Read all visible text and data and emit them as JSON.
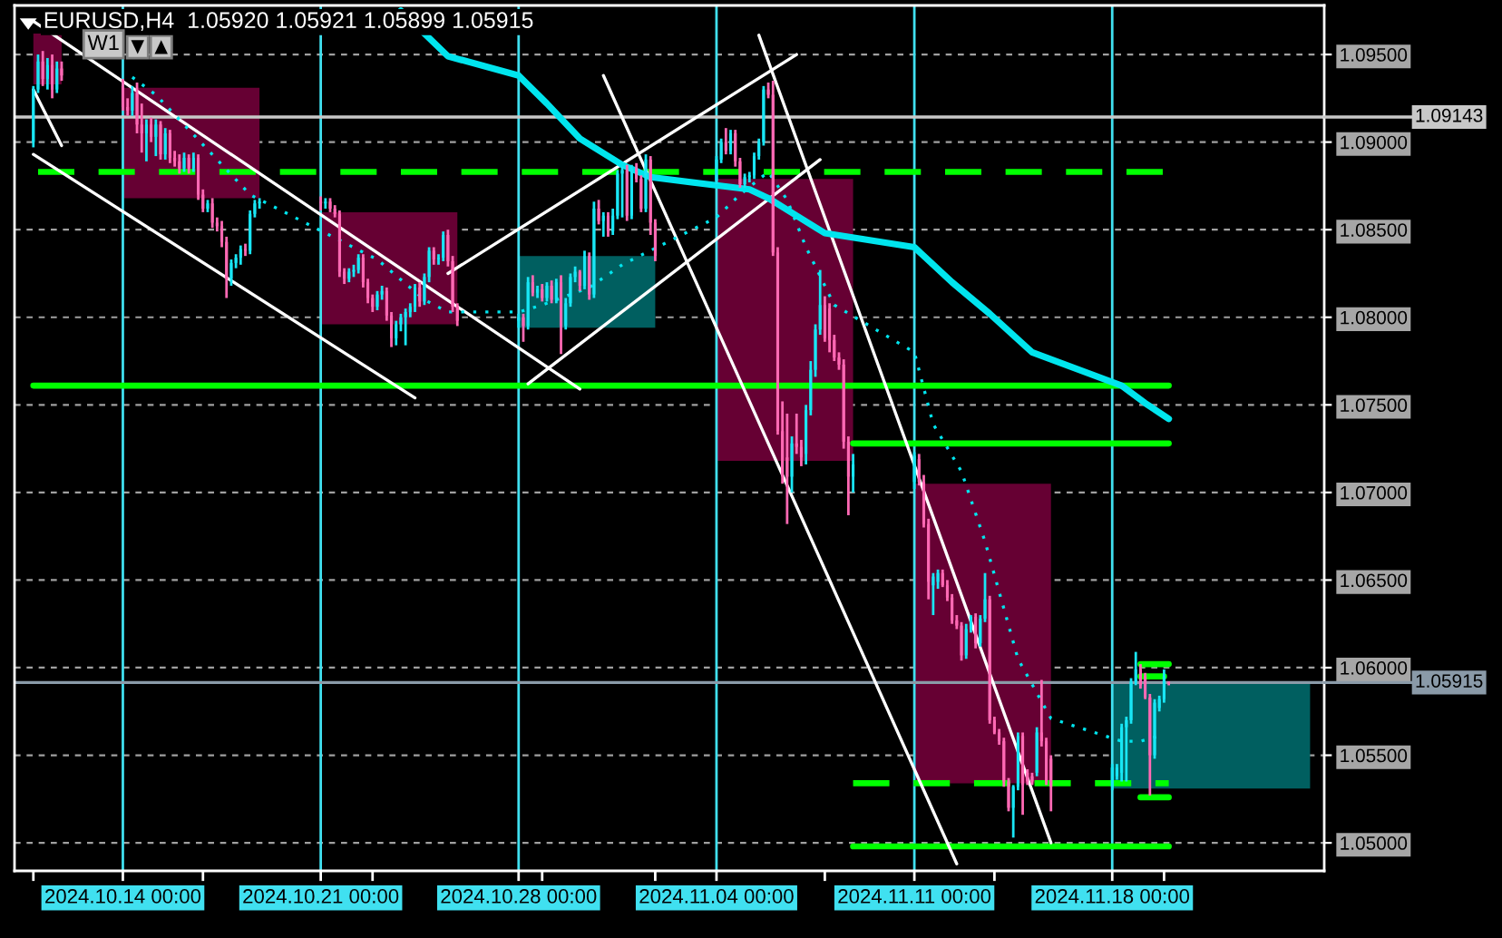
{
  "chart_data": {
    "type": "candlestick",
    "title": "EURUSD,H4  1.05920 1.05921 1.05899 1.05915",
    "annotations": [
      "W1"
    ],
    "colors": [
      "#19e6f5",
      "#19e6f5",
      "#ff69b4",
      "#19e6f5",
      "#ff69b4",
      "#19e6f5",
      "#ff69b4",
      "#ff69b4",
      "#ff69b4",
      "#19e6f5",
      "#ff69b4",
      "#ff69b4",
      "#19e6f5",
      "#ff69b4",
      "#19e6f5",
      "#ff69b4",
      "#19e6f5",
      "#ff69b4",
      "#ff69b4",
      "#ff69b4",
      "#19e6f5",
      "#ff69b4",
      "#19e6f5",
      "#ff69b4",
      "#ff69b4",
      "#19e6f5",
      "#ff69b4",
      "#ff69b4",
      "#ff69b4",
      "#ff69b4",
      "#19e6f5",
      "#19e6f5",
      "#19e6f5",
      "#ff69b4",
      "#19e6f5",
      "#19e6f5",
      "#19e6f5",
      "#ff69b4",
      "#19e6f5",
      "#ff69b4",
      "#ff69b4",
      "#ff69b4",
      "#ff69b4",
      "#19e6f5",
      "#19e6f5",
      "#19e6f5",
      "#ff69b4",
      "#ff69b4",
      "#ff69b4",
      "#19e6f5",
      "#19e6f5",
      "#ff69b4",
      "#ff69b4",
      "#19e6f5",
      "#19e6f5",
      "#19e6f5",
      "#19e6f5",
      "#19e6f5",
      "#ff69b4",
      "#19e6f5",
      "#19e6f5",
      "#ff69b4",
      "#19e6f5",
      "#19e6f5",
      "#ff69b4",
      "#ff69b4",
      "#ff69b4",
      "#19e6f5",
      "#ff69b4",
      "#19e6f5",
      "#ff69b4",
      "#19e6f5",
      "#ff69b4",
      "#19e6f5",
      "#ff69b4",
      "#19e6f5",
      "#ff69b4",
      "#19e6f5",
      "#19e6f5",
      "#19e6f5",
      "#ff69b4",
      "#19e6f5",
      "#ff69b4",
      "#19e6f5",
      "#ff69b4",
      "#19e6f5",
      "#ff69b4",
      "#19e6f5",
      "#19e6f5",
      "#19e6f5",
      "#ff69b4",
      "#19e6f5",
      "#ff69b4",
      "#ff69b4",
      "#19e6f5",
      "#ff69b4",
      "#ff69b4",
      "#19e6f5",
      "#19e6f5",
      "#ff69b4",
      "#19e6f5",
      "#ff69b4",
      "#ff69b4",
      "#19e6f5",
      "#19e6f5",
      "#19e6f5",
      "#19e6f5",
      "#19e6f5",
      "#ff69b4",
      "#ff69b4",
      "#ff69b4",
      "#ff69b4",
      "#ff69b4",
      "#19e6f5",
      "#ff69b4",
      "#ff69b4",
      "#19e6f5",
      "#19e6f5",
      "#19e6f5",
      "#19e6f5",
      "#ff69b4",
      "#ff69b4",
      "#ff69b4",
      "#ff69b4",
      "#ff69b4",
      "#ff69b4",
      "#19e6f5",
      "#19e6f5",
      "#ff69b4",
      "#ff69b4",
      "#ff69b4",
      "#19e6f5",
      "#19e6f5",
      "#ff69b4",
      "#ff69b4",
      "#ff69b4",
      "#ff69b4",
      "#ff69b4",
      "#19e6f5",
      "#19e6f5",
      "#ff69b4",
      "#19e6f5",
      "#19e6f5",
      "#ff69b4",
      "#ff69b4",
      "#ff69b4",
      "#ff69b4",
      "#ff69b4",
      "#19e6f5",
      "#19e6f5",
      "#ff69b4",
      "#ff69b4",
      "#ff69b4",
      "#19e6f5",
      "#ff69b4",
      "#ff69b4",
      "#ff69b4",
      "#19e6f5",
      "#19e6f5",
      "#19e6f5",
      "#19e6f5",
      "#19e6f5",
      "#19e6f5",
      "#ff69b4",
      "#ff69b4",
      "#ff69b4",
      "#19e6f5",
      "#19e6f5",
      "#19e6f5",
      "#ff69b4"
    ],
    "x": [
      "2024-10-10T20:00",
      "2024-10-11T00:00",
      "2024-10-11T04:00",
      "2024-10-11T08:00",
      "2024-10-11T12:00",
      "2024-10-11T16:00",
      "2024-10-11T20:00",
      "2024-10-14T00:00",
      "2024-10-14T04:00",
      "2024-10-14T08:00",
      "2024-10-14T12:00",
      "2024-10-14T16:00",
      "2024-10-14T20:00",
      "2024-10-15T00:00",
      "2024-10-15T04:00",
      "2024-10-15T08:00",
      "2024-10-15T12:00",
      "2024-10-15T16:00",
      "2024-10-15T20:00",
      "2024-10-16T00:00",
      "2024-10-16T04:00",
      "2024-10-16T08:00",
      "2024-10-16T12:00",
      "2024-10-16T16:00",
      "2024-10-16T20:00",
      "2024-10-17T00:00",
      "2024-10-17T04:00",
      "2024-10-17T08:00",
      "2024-10-17T12:00",
      "2024-10-17T16:00",
      "2024-10-17T20:00",
      "2024-10-18T00:00",
      "2024-10-18T04:00",
      "2024-10-18T08:00",
      "2024-10-18T12:00",
      "2024-10-18T16:00",
      "2024-10-18T20:00",
      "2024-10-21T00:00",
      "2024-10-21T04:00",
      "2024-10-21T08:00",
      "2024-10-21T12:00",
      "2024-10-21T16:00",
      "2024-10-21T20:00",
      "2024-10-22T00:00",
      "2024-10-22T04:00",
      "2024-10-22T08:00",
      "2024-10-22T12:00",
      "2024-10-22T16:00",
      "2024-10-22T20:00",
      "2024-10-23T00:00",
      "2024-10-23T04:00",
      "2024-10-23T08:00",
      "2024-10-23T12:00",
      "2024-10-23T16:00",
      "2024-10-23T20:00",
      "2024-10-24T00:00",
      "2024-10-24T04:00",
      "2024-10-24T08:00",
      "2024-10-24T12:00",
      "2024-10-24T16:00",
      "2024-10-24T20:00",
      "2024-10-25T00:00",
      "2024-10-25T04:00",
      "2024-10-25T08:00",
      "2024-10-25T12:00",
      "2024-10-25T16:00",
      "2024-10-25T20:00",
      "2024-10-28T00:00",
      "2024-10-28T04:00",
      "2024-10-28T08:00",
      "2024-10-28T12:00",
      "2024-10-28T16:00",
      "2024-10-28T20:00",
      "2024-10-29T00:00",
      "2024-10-29T04:00",
      "2024-10-29T08:00",
      "2024-10-29T12:00",
      "2024-10-29T16:00",
      "2024-10-29T20:00",
      "2024-10-30T00:00",
      "2024-10-30T04:00",
      "2024-10-30T08:00",
      "2024-10-30T12:00",
      "2024-10-30T16:00",
      "2024-10-30T20:00",
      "2024-10-31T00:00",
      "2024-10-31T04:00",
      "2024-10-31T08:00",
      "2024-10-31T12:00",
      "2024-10-31T16:00",
      "2024-10-31T20:00",
      "2024-11-01T00:00",
      "2024-11-01T04:00",
      "2024-11-01T08:00",
      "2024-11-01T12:00",
      "2024-11-01T16:00",
      "2024-11-01T20:00",
      "2024-11-04T00:00",
      "2024-11-04T04:00",
      "2024-11-04T08:00",
      "2024-11-04T12:00",
      "2024-11-04T16:00",
      "2024-11-04T20:00",
      "2024-11-05T00:00",
      "2024-11-05T04:00",
      "2024-11-05T08:00",
      "2024-11-05T12:00",
      "2024-11-05T16:00",
      "2024-11-05T20:00",
      "2024-11-06T00:00",
      "2024-11-06T04:00",
      "2024-11-06T08:00",
      "2024-11-06T12:00",
      "2024-11-06T16:00",
      "2024-11-06T20:00",
      "2024-11-07T00:00",
      "2024-11-07T04:00",
      "2024-11-07T08:00",
      "2024-11-07T12:00",
      "2024-11-07T16:00",
      "2024-11-07T20:00",
      "2024-11-08T00:00",
      "2024-11-08T04:00",
      "2024-11-08T08:00",
      "2024-11-08T12:00",
      "2024-11-08T16:00",
      "2024-11-08T20:00",
      "2024-11-11T00:00",
      "2024-11-11T04:00",
      "2024-11-11T08:00",
      "2024-11-11T12:00",
      "2024-11-11T16:00",
      "2024-11-11T20:00",
      "2024-11-12T00:00",
      "2024-11-12T04:00",
      "2024-11-12T08:00",
      "2024-11-12T12:00",
      "2024-11-12T16:00",
      "2024-11-12T20:00",
      "2024-11-13T00:00",
      "2024-11-13T04:00",
      "2024-11-13T08:00",
      "2024-11-13T12:00",
      "2024-11-13T16:00",
      "2024-11-13T20:00",
      "2024-11-14T00:00",
      "2024-11-14T04:00",
      "2024-11-14T08:00",
      "2024-11-14T12:00",
      "2024-11-14T16:00",
      "2024-11-14T20:00",
      "2024-11-15T00:00",
      "2024-11-15T04:00",
      "2024-11-15T08:00",
      "2024-11-15T12:00",
      "2024-11-15T16:00",
      "2024-11-15T20:00",
      "2024-11-18T00:00",
      "2024-11-18T04:00",
      "2024-11-18T08:00",
      "2024-11-18T12:00",
      "2024-11-18T16:00",
      "2024-11-18T20:00",
      "2024-11-19T00:00",
      "2024-11-19T04:00",
      "2024-11-19T08:00",
      "2024-11-19T12:00",
      "2024-11-19T16:00",
      "2024-11-19T20:00",
      "2024-11-20T00:00"
    ],
    "ohlc": [
      [
        1.09,
        1.0932,
        1.0897,
        1.093
      ],
      [
        1.093,
        1.095,
        1.0928,
        1.0946
      ],
      [
        1.0946,
        1.0952,
        1.0932,
        1.0936
      ],
      [
        1.0936,
        1.0948,
        1.093,
        1.0944
      ],
      [
        1.0944,
        1.095,
        1.0925,
        1.093
      ],
      [
        1.093,
        1.0946,
        1.0928,
        1.0942
      ],
      [
        1.0942,
        1.0946,
        1.0935,
        1.0938
      ],
      [
        1.0932,
        1.0936,
        1.0918,
        1.092
      ],
      [
        1.092,
        1.0925,
        1.0915,
        1.0918
      ],
      [
        1.0918,
        1.0932,
        1.0915,
        1.0928
      ],
      [
        1.0928,
        1.0934,
        1.0905,
        1.091
      ],
      [
        1.091,
        1.0922,
        1.0894,
        1.0905
      ],
      [
        1.0905,
        1.0913,
        1.0889,
        1.091
      ],
      [
        1.091,
        1.0914,
        1.09,
        1.0903
      ],
      [
        1.0903,
        1.0913,
        1.0892,
        1.091
      ],
      [
        1.091,
        1.0912,
        1.089,
        1.0893
      ],
      [
        1.0893,
        1.0908,
        1.089,
        1.0905
      ],
      [
        1.0905,
        1.0907,
        1.0888,
        1.0891
      ],
      [
        1.0891,
        1.0895,
        1.0886,
        1.0889
      ],
      [
        1.0889,
        1.0893,
        1.0882,
        1.0885
      ],
      [
        1.0885,
        1.0894,
        1.0883,
        1.0891
      ],
      [
        1.0891,
        1.0893,
        1.0882,
        1.0885
      ],
      [
        1.0885,
        1.0894,
        1.0883,
        1.0891
      ],
      [
        1.0891,
        1.0893,
        1.0867,
        1.087
      ],
      [
        1.087,
        1.0873,
        1.086,
        1.0862
      ],
      [
        1.0862,
        1.0867,
        1.086,
        1.0865
      ],
      [
        1.0865,
        1.0868,
        1.0851,
        1.0854
      ],
      [
        1.0854,
        1.0857,
        1.0849,
        1.0852
      ],
      [
        1.0852,
        1.0855,
        1.084,
        1.0843
      ],
      [
        1.0843,
        1.0846,
        1.0811,
        1.0822
      ],
      [
        1.0822,
        1.0833,
        1.0818,
        1.0831
      ],
      [
        1.0831,
        1.0836,
        1.0828,
        1.0834
      ],
      [
        1.0834,
        1.0841,
        1.083,
        1.0839
      ],
      [
        1.0839,
        1.0842,
        1.0835,
        1.0838
      ],
      [
        1.0838,
        1.0861,
        1.0836,
        1.0859
      ],
      [
        1.0859,
        1.0867,
        1.0857,
        1.0865
      ],
      [
        1.0865,
        1.0868,
        1.0862,
        1.0866
      ],
      [
        1.0866,
        1.0869,
        1.0861,
        1.0865
      ],
      [
        1.0865,
        1.0868,
        1.0862,
        1.0866
      ],
      [
        1.0866,
        1.0868,
        1.086,
        1.0862
      ],
      [
        1.0862,
        1.0864,
        1.0857,
        1.0859
      ],
      [
        1.0859,
        1.0861,
        1.0823,
        1.0826
      ],
      [
        1.0826,
        1.0828,
        1.0819,
        1.0822
      ],
      [
        1.0822,
        1.0828,
        1.082,
        1.0826
      ],
      [
        1.0826,
        1.083,
        1.0823,
        1.0827
      ],
      [
        1.0827,
        1.0836,
        1.0825,
        1.0834
      ],
      [
        1.0834,
        1.0836,
        1.0817,
        1.082
      ],
      [
        1.082,
        1.0822,
        1.0808,
        1.0811
      ],
      [
        1.0811,
        1.0813,
        1.0803,
        1.0806
      ],
      [
        1.0806,
        1.0815,
        1.0804,
        1.0813
      ],
      [
        1.0813,
        1.0818,
        1.081,
        1.0815
      ],
      [
        1.0815,
        1.0817,
        1.0798,
        1.0801
      ],
      [
        1.0801,
        1.0803,
        1.0783,
        1.0788
      ],
      [
        1.0788,
        1.0798,
        1.0784,
        1.0796
      ],
      [
        1.0796,
        1.0802,
        1.0792,
        1.08
      ],
      [
        1.08,
        1.0805,
        1.0784,
        1.0803
      ],
      [
        1.0803,
        1.0808,
        1.08,
        1.0806
      ],
      [
        1.0806,
        1.0819,
        1.0803,
        1.0817
      ],
      [
        1.0817,
        1.082,
        1.0806,
        1.0809
      ],
      [
        1.0809,
        1.0825,
        1.0807,
        1.0823
      ],
      [
        1.0823,
        1.084,
        1.082,
        1.0838
      ],
      [
        1.0838,
        1.084,
        1.083,
        1.0833
      ],
      [
        1.0833,
        1.0836,
        1.083,
        1.0834
      ],
      [
        1.0834,
        1.0849,
        1.0832,
        1.0847
      ],
      [
        1.0847,
        1.085,
        1.0829,
        1.0832
      ],
      [
        1.0832,
        1.0835,
        1.0803,
        1.0806
      ],
      [
        1.0806,
        1.0808,
        1.0795,
        1.0798
      ],
      [
        1.0798,
        1.0802,
        1.0794,
        1.08
      ],
      [
        1.08,
        1.0802,
        1.0786,
        1.0795
      ],
      [
        1.0795,
        1.0823,
        1.0793,
        1.082
      ],
      [
        1.082,
        1.0824,
        1.0812,
        1.0814
      ],
      [
        1.0814,
        1.0818,
        1.0811,
        1.0816
      ],
      [
        1.0816,
        1.0819,
        1.0809,
        1.0811
      ],
      [
        1.0811,
        1.082,
        1.0809,
        1.0818
      ],
      [
        1.0818,
        1.0821,
        1.0808,
        1.081
      ],
      [
        1.081,
        1.0822,
        1.0808,
        1.082
      ],
      [
        1.082,
        1.0824,
        1.0779,
        1.0795
      ],
      [
        1.0795,
        1.0811,
        1.0793,
        1.0808
      ],
      [
        1.0808,
        1.0825,
        1.0806,
        1.0823
      ],
      [
        1.0823,
        1.0829,
        1.082,
        1.0826
      ],
      [
        1.0826,
        1.0827,
        1.0815,
        1.0818
      ],
      [
        1.0818,
        1.0838,
        1.0816,
        1.0835
      ],
      [
        1.0835,
        1.0837,
        1.081,
        1.0813
      ],
      [
        1.0813,
        1.0866,
        1.0811,
        1.0862
      ],
      [
        1.0862,
        1.0867,
        1.0853,
        1.0855
      ],
      [
        1.0855,
        1.086,
        1.0846,
        1.0858
      ],
      [
        1.0858,
        1.086,
        1.0846,
        1.0849
      ],
      [
        1.0849,
        1.0862,
        1.0847,
        1.0858
      ],
      [
        1.0858,
        1.0884,
        1.0856,
        1.0882
      ],
      [
        1.0882,
        1.0886,
        1.0857,
        1.0884
      ],
      [
        1.0884,
        1.0887,
        1.0855,
        1.0858
      ],
      [
        1.0858,
        1.0887,
        1.0856,
        1.0885
      ],
      [
        1.0885,
        1.0888,
        1.0877,
        1.0879
      ],
      [
        1.0879,
        1.0881,
        1.086,
        1.0862
      ],
      [
        1.0862,
        1.0893,
        1.086,
        1.089
      ],
      [
        1.089,
        1.0892,
        1.0847,
        1.0854
      ],
      [
        1.0854,
        1.0856,
        1.0832,
        1.0835
      ],
      [
        1.0878,
        1.0892,
        1.0876,
        1.089
      ],
      [
        1.089,
        1.0902,
        1.0888,
        1.09
      ],
      [
        1.09,
        1.0908,
        1.0893,
        1.0895
      ],
      [
        1.0895,
        1.0907,
        1.0893,
        1.0905
      ],
      [
        1.0905,
        1.0907,
        1.0886,
        1.0889
      ],
      [
        1.0889,
        1.0891,
        1.0874,
        1.0876
      ],
      [
        1.0876,
        1.0882,
        1.0874,
        1.088
      ],
      [
        1.088,
        1.0883,
        1.0877,
        1.0881
      ],
      [
        1.0881,
        1.0894,
        1.0879,
        1.0892
      ],
      [
        1.0892,
        1.0902,
        1.089,
        1.09
      ],
      [
        1.09,
        1.0932,
        1.0898,
        1.093
      ],
      [
        1.093,
        1.0934,
        1.0925,
        1.0927
      ],
      [
        1.0927,
        1.0935,
        1.0835,
        1.0837
      ],
      [
        1.0837,
        1.084,
        1.0733,
        1.0735
      ],
      [
        1.0735,
        1.0752,
        1.0705,
        1.071
      ],
      [
        1.072,
        1.0745,
        1.0682,
        1.0709
      ],
      [
        1.0709,
        1.0732,
        1.07,
        1.0728
      ],
      [
        1.0728,
        1.0745,
        1.0722,
        1.0726
      ],
      [
        1.0726,
        1.073,
        1.0715,
        1.072
      ],
      [
        1.0722,
        1.075,
        1.0716,
        1.0747
      ],
      [
        1.0747,
        1.0775,
        1.0744,
        1.077
      ],
      [
        1.077,
        1.0796,
        1.0766,
        1.0793
      ],
      [
        1.0793,
        1.0827,
        1.079,
        1.0807
      ],
      [
        1.0807,
        1.0812,
        1.0786,
        1.0788
      ],
      [
        1.0805,
        1.0808,
        1.078,
        1.0787
      ],
      [
        1.0787,
        1.079,
        1.0775,
        1.0777
      ],
      [
        1.0777,
        1.078,
        1.077,
        1.0773
      ],
      [
        1.0773,
        1.0776,
        1.0725,
        1.0729
      ],
      [
        1.0729,
        1.0732,
        1.0687,
        1.0709
      ],
      [
        1.0709,
        1.0722,
        1.07,
        1.0716
      ],
      [
        1.0706,
        1.0723,
        1.0702,
        1.0721
      ],
      [
        1.0719,
        1.0722,
        1.0704,
        1.0706
      ],
      [
        1.0706,
        1.071,
        1.068,
        1.0682
      ],
      [
        1.0682,
        1.0685,
        1.0639,
        1.0649
      ],
      [
        1.0647,
        1.0654,
        1.063,
        1.0652
      ],
      [
        1.0649,
        1.0656,
        1.0645,
        1.0654
      ],
      [
        1.0654,
        1.0656,
        1.0646,
        1.0647
      ],
      [
        1.0647,
        1.065,
        1.0638,
        1.064
      ],
      [
        1.064,
        1.0642,
        1.0625,
        1.0627
      ],
      [
        1.0627,
        1.063,
        1.0622,
        1.0624
      ],
      [
        1.0624,
        1.0626,
        1.0604,
        1.0607
      ],
      [
        1.0607,
        1.0625,
        1.0605,
        1.0622
      ],
      [
        1.0622,
        1.063,
        1.062,
        1.0629
      ],
      [
        1.0629,
        1.0631,
        1.0611,
        1.0614
      ],
      [
        1.0614,
        1.063,
        1.0612,
        1.0628
      ],
      [
        1.0628,
        1.0654,
        1.0626,
        1.0639
      ],
      [
        1.0639,
        1.0641,
        1.0568,
        1.057
      ],
      [
        1.057,
        1.0572,
        1.0562,
        1.0563
      ],
      [
        1.0563,
        1.0565,
        1.0556,
        1.0558
      ],
      [
        1.0558,
        1.056,
        1.0532,
        1.0535
      ],
      [
        1.0535,
        1.0537,
        1.0518,
        1.052
      ],
      [
        1.052,
        1.0533,
        1.0503,
        1.0532
      ],
      [
        1.0532,
        1.0563,
        1.053,
        1.0561
      ],
      [
        1.0561,
        1.0563,
        1.0516,
        1.0533
      ],
      [
        1.054,
        1.0542,
        1.0533,
        1.0535
      ],
      [
        1.0538,
        1.054,
        1.0533,
        1.0535
      ],
      [
        1.054,
        1.0566,
        1.0538,
        1.0563
      ],
      [
        1.0563,
        1.0593,
        1.0555,
        1.0558
      ],
      [
        1.0558,
        1.056,
        1.0533,
        1.0535
      ],
      [
        1.0548,
        1.055,
        1.0518,
        1.0532
      ],
      [
        1.0532,
        1.0545,
        1.053,
        1.0543
      ],
      [
        1.0538,
        1.0545,
        1.0536,
        1.0543
      ],
      [
        1.054,
        1.0568,
        1.0535,
        1.0566
      ],
      [
        1.0566,
        1.0572,
        1.0535,
        1.057
      ],
      [
        1.057,
        1.0594,
        1.0568,
        1.0592
      ],
      [
        1.0592,
        1.0609,
        1.059,
        1.0599
      ],
      [
        1.0599,
        1.0602,
        1.0588,
        1.059
      ],
      [
        1.0595,
        1.0597,
        1.0582,
        1.0583
      ],
      [
        1.0583,
        1.0585,
        1.0527,
        1.055
      ],
      [
        1.055,
        1.0582,
        1.0548,
        1.058
      ],
      [
        1.0577,
        1.0584,
        1.0575,
        1.0582
      ],
      [
        1.0582,
        1.0599,
        1.058,
        1.0595
      ],
      [
        1.0592,
        1.05921,
        1.05899,
        1.05915
      ]
    ],
    "series": [
      {
        "type": "line",
        "color": "#660033",
        "x": [
          "2024-10-10T20:00",
          "2024-10-11T20:00"
        ],
        "values": [
          null,
          null
        ],
        "lower": [
          1.0933,
          1.0933
        ],
        "upper": [
          1.0962,
          1.0962
        ]
      },
      {
        "type": "line",
        "color": "#660033",
        "x": [
          "2024-10-14T00:00",
          "2024-10-18T20:00"
        ],
        "values": [
          null,
          null
        ],
        "lower": [
          1.0868,
          1.0868
        ],
        "upper": [
          1.0931,
          1.0931
        ]
      },
      {
        "type": "line",
        "color": "#660033",
        "x": [
          "2024-10-21T00:00",
          "2024-10-25T20:00"
        ],
        "values": [
          null,
          null
        ],
        "lower": [
          1.0796,
          1.0796
        ],
        "upper": [
          1.086,
          1.086
        ]
      },
      {
        "type": "line",
        "color": "#005f60",
        "x": [
          "2024-10-28T00:00",
          "2024-11-01T20:00"
        ],
        "values": [
          null,
          null
        ],
        "lower": [
          1.0794,
          1.0794
        ],
        "upper": [
          1.0835,
          1.0835
        ]
      },
      {
        "type": "line",
        "color": "#660033",
        "x": [
          "2024-11-04T00:00",
          "2024-11-08T20:00"
        ],
        "values": [
          null,
          null
        ],
        "lower": [
          1.0718,
          1.0718
        ],
        "upper": [
          1.0879,
          1.0879
        ]
      },
      {
        "type": "line",
        "color": "#660033",
        "x": [
          "2024-11-11T00:00",
          "2024-11-15T20:00"
        ],
        "values": [
          null,
          null
        ],
        "lower": [
          1.0534,
          1.0534
        ],
        "upper": [
          1.0705,
          1.0705
        ]
      },
      {
        "type": "line",
        "color": "#005f60",
        "x": [
          "2024-11-18T00:00",
          "2024-11-25T00:00"
        ],
        "values": [
          null,
          null
        ],
        "lower": [
          1.0531,
          1.0531
        ],
        "upper": [
          1.0591,
          1.0591
        ]
      },
      {
        "type": "line",
        "color": "#00ff00",
        "line_style": "solid",
        "x": [
          "2024-10-10T20:00",
          "2024-11-20T00:00"
        ],
        "values": [
          1.0761,
          1.0761
        ]
      },
      {
        "type": "line",
        "color": "#00ff00",
        "line_style": "dashed",
        "x": [
          "2024-10-11T00:00",
          "2024-11-20T00:00"
        ],
        "values": [
          1.0883,
          1.0883
        ]
      },
      {
        "type": "line",
        "color": "#00ff00",
        "line_style": "solid",
        "x": [
          "2024-11-08T20:00",
          "2024-11-20T00:00"
        ],
        "values": [
          1.0728,
          1.0728
        ]
      },
      {
        "type": "line",
        "color": "#00ff00",
        "line_style": "dashed",
        "x": [
          "2024-11-08T20:00",
          "2024-11-20T00:00"
        ],
        "values": [
          1.0534,
          1.0534
        ]
      },
      {
        "type": "line",
        "color": "#00ff00",
        "line_style": "solid",
        "x": [
          "2024-11-08T20:00",
          "2024-11-20T00:00"
        ],
        "values": [
          1.0498,
          1.0498
        ]
      },
      {
        "type": "line",
        "color": "#00ff00",
        "line_style": "solid",
        "x": [
          "2024-11-19T00:00",
          "2024-11-20T00:00"
        ],
        "values": [
          1.0602,
          1.0602
        ]
      },
      {
        "type": "line",
        "color": "#00ff00",
        "line_style": "solid",
        "x": [
          "2024-11-19T00:00",
          "2024-11-20T00:00"
        ],
        "values": [
          1.0526,
          1.0526
        ]
      },
      {
        "type": "line",
        "color": "#00ff00",
        "line_style": "solid",
        "x": [
          "2024-11-19T00:00",
          "2024-11-19T20:00"
        ],
        "values": [
          1.0595,
          1.0595
        ]
      },
      {
        "type": "line",
        "color": "#ffffff",
        "line_style": "solid",
        "x": [
          "2024-10-10T20:00",
          "2024-10-30T04:00"
        ],
        "values": [
          1.0969,
          1.0759
        ]
      },
      {
        "type": "line",
        "color": "#ffffff",
        "line_style": "solid",
        "x": [
          "2024-10-10T20:00",
          "2024-10-24T08:00"
        ],
        "values": [
          1.0893,
          1.0754
        ]
      },
      {
        "type": "line",
        "color": "#ffffff",
        "line_style": "solid",
        "x": [
          "2024-10-10T20:00",
          "2024-10-11T20:00"
        ],
        "values": [
          1.093,
          1.0898
        ]
      },
      {
        "type": "line",
        "color": "#ffffff",
        "line_style": "solid",
        "x": [
          "2024-10-25T12:00",
          "2024-11-06T20:00"
        ],
        "values": [
          1.0825,
          1.095
        ]
      },
      {
        "type": "line",
        "color": "#ffffff",
        "line_style": "solid",
        "x": [
          "2024-10-28T08:00",
          "2024-11-07T16:00"
        ],
        "values": [
          1.0762,
          1.089
        ]
      },
      {
        "type": "line",
        "color": "#ffffff",
        "line_style": "solid",
        "x": [
          "2024-10-31T00:00",
          "2024-11-12T12:00"
        ],
        "values": [
          1.0938,
          1.0488
        ]
      },
      {
        "type": "line",
        "color": "#ffffff",
        "line_style": "solid",
        "x": [
          "2024-11-05T12:00",
          "2024-11-15T20:00"
        ],
        "values": [
          1.0961,
          1.05
        ]
      },
      {
        "type": "line",
        "color": "#00e5ee",
        "line_style": "dotted",
        "x": [
          "2024-10-14T08:00",
          "2024-10-15T04:00",
          "2024-10-17T08:00",
          "2024-10-18T12:00",
          "2024-10-23T00:00",
          "2024-10-24T16:00",
          "2024-10-25T12:00",
          "2024-10-28T00:00",
          "2024-10-28T20:00",
          "2024-10-30T12:00",
          "2024-10-31T16:00",
          "2024-11-04T00:00",
          "2024-11-04T20:00",
          "2024-11-05T20:00",
          "2024-11-06T12:00",
          "2024-11-07T04:00",
          "2024-11-08T04:00",
          "2024-11-11T00:00",
          "2024-11-11T16:00",
          "2024-11-12T16:00",
          "2024-11-13T12:00",
          "2024-11-14T16:00",
          "2024-11-15T20:00",
          "2024-11-18T08:00",
          "2024-11-19T00:00",
          "2024-11-19T16:00"
        ],
        "values": [
          1.0937,
          1.0927,
          1.089,
          1.087,
          1.0833,
          1.081,
          1.0803,
          1.0803,
          1.0807,
          1.0817,
          1.083,
          1.0857,
          1.087,
          1.0883,
          1.0867,
          1.084,
          1.0807,
          1.078,
          1.0739,
          1.0712,
          1.0672,
          1.0605,
          1.0571,
          1.0558,
          1.0558,
          1.0561
        ]
      },
      {
        "type": "line",
        "color": "#00e5ee",
        "line_style": "solid",
        "x": [
          "2024-10-23T20:00",
          "2024-10-25T12:00",
          "2024-10-28T00:00",
          "2024-10-29T00:00",
          "2024-10-30T04:00",
          "2024-10-31T16:00",
          "2024-11-01T16:00",
          "2024-11-05T04:00",
          "2024-11-05T20:00",
          "2024-11-06T20:00",
          "2024-11-07T20:00",
          "2024-11-11T00:00",
          "2024-11-11T08:00",
          "2024-11-12T08:00",
          "2024-11-13T16:00",
          "2024-11-15T04:00",
          "2024-11-18T08:00",
          "2024-11-19T04:00",
          "2024-11-20T00:00"
        ],
        "values": [
          1.0975,
          1.0949,
          1.0938,
          1.0922,
          1.0902,
          1.0887,
          1.088,
          1.0873,
          1.0868,
          1.0858,
          1.0848,
          1.084,
          1.0835,
          1.082,
          1.0802,
          1.078,
          1.0761,
          1.0751,
          1.0742
        ]
      }
    ],
    "ref_lines": [
      {
        "axis": "x",
        "value": "2024-10-14T00:00",
        "color": "#40e0f0"
      },
      {
        "axis": "x",
        "value": "2024-10-21T00:00",
        "color": "#40e0f0"
      },
      {
        "axis": "x",
        "value": "2024-10-28T00:00",
        "color": "#40e0f0"
      },
      {
        "axis": "x",
        "value": "2024-11-04T00:00",
        "color": "#40e0f0"
      },
      {
        "axis": "x",
        "value": "2024-11-11T00:00",
        "color": "#40e0f0"
      },
      {
        "axis": "x",
        "value": "2024-11-18T00:00",
        "color": "#40e0f0"
      },
      {
        "axis": "y",
        "value": 1.09143,
        "label": "1.09143",
        "color": "#c8c8c8"
      },
      {
        "axis": "y",
        "value": 1.05915,
        "label": "1.05915",
        "color": "#8a9aa8"
      }
    ],
    "xlim": [
      "2024-10-10T04:00",
      "2024-11-25T12:00"
    ],
    "xticks": [
      {
        "value": "2024-10-10T20:00",
        "label": null
      },
      {
        "value": "2024-10-14T00:00",
        "label": "2024.10.14 00:00"
      },
      {
        "value": "2024-10-16T20:00",
        "label": null
      },
      {
        "value": "2024-10-21T00:00",
        "label": "2024.10.21 00:00"
      },
      {
        "value": "2024-10-22T20:00",
        "label": null
      },
      {
        "value": "2024-10-28T00:00",
        "label": "2024.10.28 00:00"
      },
      {
        "value": "2024-10-28T20:00",
        "label": null
      },
      {
        "value": "2024-11-01T20:00",
        "label": null
      },
      {
        "value": "2024-11-04T00:00",
        "label": "2024.11.04 00:00"
      },
      {
        "value": "2024-11-07T20:00",
        "label": null
      },
      {
        "value": "2024-11-11T00:00",
        "label": "2024.11.11 00:00"
      },
      {
        "value": "2024-11-13T20:00",
        "label": null
      },
      {
        "value": "2024-11-18T00:00",
        "label": "2024.11.18 00:00"
      },
      {
        "value": "2024-11-19T20:00",
        "label": null
      }
    ],
    "ylim": [
      1.0484,
      1.0978
    ],
    "yticks": [
      {
        "value": 1.095,
        "label": "1.09500"
      },
      {
        "value": 1.09,
        "label": "1.09000"
      },
      {
        "value": 1.085,
        "label": "1.08500"
      },
      {
        "value": 1.08,
        "label": "1.08000"
      },
      {
        "value": 1.075,
        "label": "1.07500"
      },
      {
        "value": 1.07,
        "label": "1.07000"
      },
      {
        "value": 1.065,
        "label": "1.06500"
      },
      {
        "value": 1.06,
        "label": "1.06000"
      },
      {
        "value": 1.055,
        "label": "1.05500"
      },
      {
        "value": 1.05,
        "label": "1.05000"
      }
    ],
    "grid": "y"
  }
}
